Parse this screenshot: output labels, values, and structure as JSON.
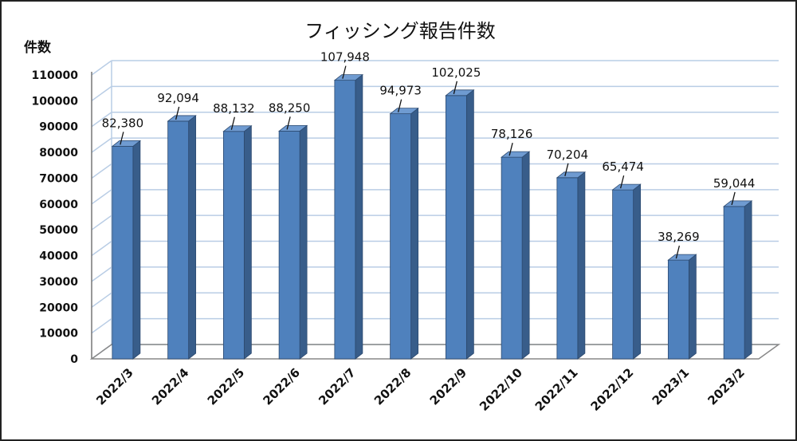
{
  "chart_data": {
    "type": "bar",
    "title": "フィッシング報告件数",
    "ylabel": "件数",
    "xlabel": "",
    "categories": [
      "2022/3",
      "2022/4",
      "2022/5",
      "2022/6",
      "2022/7",
      "2022/8",
      "2022/9",
      "2022/10",
      "2022/11",
      "2022/12",
      "2023/1",
      "2023/2"
    ],
    "values": [
      82380,
      92094,
      88132,
      88250,
      107948,
      94973,
      102025,
      78126,
      70204,
      65474,
      38269,
      59044
    ],
    "data_labels": [
      "82,380",
      "92,094",
      "88,132",
      "88,250",
      "107,948",
      "94,973",
      "102,025",
      "78,126",
      "70,204",
      "65,474",
      "38,269",
      "59,044"
    ],
    "ylim": [
      0,
      110000
    ],
    "yticks": [
      0,
      10000,
      20000,
      30000,
      40000,
      50000,
      60000,
      70000,
      80000,
      90000,
      100000,
      110000
    ],
    "grid": true,
    "legend": "none",
    "colors": {
      "bar_front": "#4f81bd",
      "bar_side": "#385d8a",
      "bar_top": "#6f9bd1",
      "grid": "#b9cde5"
    }
  }
}
